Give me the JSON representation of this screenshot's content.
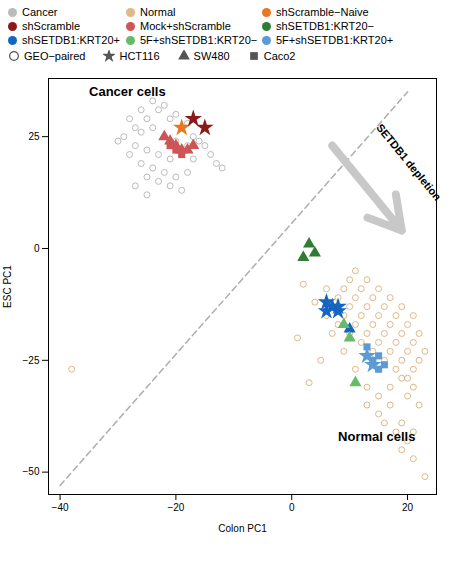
{
  "chart_data": {
    "type": "scatter",
    "xlabel": "Colon PC1",
    "ylabel": "ESC PC1",
    "xlim": [
      -42,
      25
    ],
    "ylim": [
      -55,
      38
    ],
    "xticks": [
      -40,
      -20,
      0,
      20
    ],
    "yticks": [
      -50,
      -25,
      0,
      25
    ],
    "grid": false,
    "series": [
      {
        "name": "Cancer",
        "color": "#BBBBBB",
        "marker": "circle",
        "values": [
          [
            -28,
            29
          ],
          [
            -26,
            31
          ],
          [
            -24,
            33
          ],
          [
            -22,
            32
          ],
          [
            -20,
            30
          ],
          [
            -18,
            28
          ],
          [
            -27,
            27
          ],
          [
            -25,
            29
          ],
          [
            -23,
            31
          ],
          [
            -21,
            29
          ],
          [
            -19,
            27
          ],
          [
            -17,
            25
          ],
          [
            -29,
            25
          ],
          [
            -26,
            26
          ],
          [
            -24,
            27
          ],
          [
            -22,
            25
          ],
          [
            -20,
            24
          ],
          [
            -18,
            23
          ],
          [
            -16,
            24
          ],
          [
            -27,
            23
          ],
          [
            -25,
            22
          ],
          [
            -23,
            21
          ],
          [
            -21,
            20
          ],
          [
            -19,
            21
          ],
          [
            -17,
            20
          ],
          [
            -28,
            21
          ],
          [
            -26,
            19
          ],
          [
            -24,
            18
          ],
          [
            -22,
            17
          ],
          [
            -20,
            16
          ],
          [
            -18,
            17
          ],
          [
            -25,
            16
          ],
          [
            -23,
            15
          ],
          [
            -21,
            14
          ],
          [
            -19,
            13
          ],
          [
            -30,
            24
          ],
          [
            -15,
            23
          ],
          [
            -14,
            21
          ],
          [
            -13,
            19
          ],
          [
            -27,
            14
          ],
          [
            -25,
            12
          ],
          [
            -12,
            18
          ]
        ]
      },
      {
        "name": "Normal",
        "color": "#DEB887",
        "marker": "circle",
        "values": [
          [
            6,
            -15
          ],
          [
            8,
            -17
          ],
          [
            10,
            -19
          ],
          [
            12,
            -21
          ],
          [
            14,
            -23
          ],
          [
            16,
            -25
          ],
          [
            18,
            -27
          ],
          [
            20,
            -29
          ],
          [
            7,
            -13
          ],
          [
            9,
            -15
          ],
          [
            11,
            -17
          ],
          [
            13,
            -19
          ],
          [
            15,
            -21
          ],
          [
            17,
            -23
          ],
          [
            19,
            -25
          ],
          [
            21,
            -27
          ],
          [
            8,
            -11
          ],
          [
            10,
            -13
          ],
          [
            12,
            -15
          ],
          [
            14,
            -17
          ],
          [
            16,
            -19
          ],
          [
            18,
            -21
          ],
          [
            20,
            -23
          ],
          [
            22,
            -25
          ],
          [
            9,
            -9
          ],
          [
            11,
            -11
          ],
          [
            13,
            -13
          ],
          [
            15,
            -15
          ],
          [
            17,
            -17
          ],
          [
            19,
            -19
          ],
          [
            21,
            -21
          ],
          [
            23,
            -23
          ],
          [
            10,
            -7
          ],
          [
            12,
            -9
          ],
          [
            14,
            -11
          ],
          [
            16,
            -13
          ],
          [
            18,
            -15
          ],
          [
            20,
            -17
          ],
          [
            22,
            -19
          ],
          [
            11,
            -5
          ],
          [
            13,
            -7
          ],
          [
            15,
            -9
          ],
          [
            17,
            -11
          ],
          [
            19,
            -13
          ],
          [
            21,
            -15
          ],
          [
            7,
            -19
          ],
          [
            9,
            -23
          ],
          [
            11,
            -27
          ],
          [
            13,
            -31
          ],
          [
            15,
            -33
          ],
          [
            17,
            -31
          ],
          [
            19,
            -29
          ],
          [
            21,
            -31
          ],
          [
            20,
            -33
          ],
          [
            22,
            -35
          ],
          [
            5,
            -25
          ],
          [
            3,
            -30
          ],
          [
            1,
            -20
          ],
          [
            15,
            -37
          ],
          [
            17,
            -35
          ],
          [
            19,
            -39
          ],
          [
            21,
            -41
          ],
          [
            13,
            -35
          ],
          [
            20,
            -43
          ],
          [
            18,
            -41
          ],
          [
            16,
            -39
          ],
          [
            23,
            -51
          ],
          [
            -38,
            -27
          ],
          [
            4,
            -12
          ],
          [
            2,
            -8
          ],
          [
            6,
            -9
          ],
          [
            19,
            -45
          ],
          [
            21,
            -47
          ]
        ]
      },
      {
        "name": "shScramble−Naive",
        "color": "#E87722",
        "marker": "star",
        "values": [
          [
            -19,
            27
          ]
        ]
      },
      {
        "name": "shScramble",
        "color": "#8B1A1A",
        "marker": "star",
        "values": [
          [
            -17,
            29
          ],
          [
            -15,
            27
          ]
        ]
      },
      {
        "name": "Mock+shScramble",
        "color": "#CD5555",
        "marker": "triangle",
        "values": [
          [
            -22,
            25
          ],
          [
            -21,
            24
          ],
          [
            -20,
            23
          ],
          [
            -19,
            22
          ],
          [
            -18,
            22
          ],
          [
            -17,
            23
          ]
        ]
      },
      {
        "name": "Mock+shScramble",
        "color": "#CD5555",
        "marker": "square",
        "values": [
          [
            -21,
            23
          ],
          [
            -20,
            22
          ],
          [
            -19,
            21
          ]
        ]
      },
      {
        "name": "shSETDB1:KRT20−",
        "color": "#2E7D32",
        "marker": "triangle",
        "values": [
          [
            3,
            1
          ],
          [
            4,
            -1
          ],
          [
            2,
            -2
          ]
        ]
      },
      {
        "name": "shSETDB1:KRT20+",
        "color": "#1565C0",
        "marker": "star",
        "values": [
          [
            6,
            -12
          ],
          [
            8,
            -14
          ],
          [
            7,
            -13
          ],
          [
            6,
            -14
          ],
          [
            8,
            -13
          ]
        ]
      },
      {
        "name": "shSETDB1:KRT20+",
        "color": "#1565C0",
        "marker": "triangle",
        "values": [
          [
            10,
            -18
          ]
        ]
      },
      {
        "name": "5F+shSETDB1:KRT20−",
        "color": "#66BB6A",
        "marker": "triangle",
        "values": [
          [
            9,
            -17
          ],
          [
            10,
            -20
          ],
          [
            11,
            -30
          ]
        ]
      },
      {
        "name": "5F+shSETDB1:KRT20+",
        "color": "#5B9BD5",
        "marker": "square",
        "values": [
          [
            13,
            -22
          ],
          [
            15,
            -24
          ],
          [
            14,
            -25
          ],
          [
            16,
            -26
          ],
          [
            15,
            -27
          ],
          [
            14,
            -26
          ]
        ]
      },
      {
        "name": "5F+shSETDB1:KRT20+",
        "color": "#5B9BD5",
        "marker": "star",
        "values": [
          [
            13,
            -24
          ],
          [
            14,
            -26
          ]
        ]
      }
    ],
    "marker_legend": [
      {
        "name": "GEO−paired",
        "marker": "circle",
        "color": "#555555"
      },
      {
        "name": "HCT116",
        "marker": "star",
        "color": "#555555"
      },
      {
        "name": "SW480",
        "marker": "triangle",
        "color": "#555555"
      },
      {
        "name": "Caco2",
        "marker": "square",
        "color": "#555555"
      }
    ],
    "reference_line": {
      "x": [
        -40,
        20
      ],
      "y": [
        -53,
        35
      ],
      "color": "#999999",
      "line_style": "dashed"
    },
    "arrow": {
      "x": [
        7,
        19
      ],
      "y": [
        23,
        4
      ],
      "color": "#C8C8C8",
      "text": "SETDB1 depletion",
      "text_x": 14.5,
      "text_y": 27
    },
    "annotations": [
      {
        "text": "Cancer cells",
        "x": -35,
        "y": 34
      },
      {
        "text": "Normal cells",
        "x": 8,
        "y": -43
      }
    ]
  }
}
